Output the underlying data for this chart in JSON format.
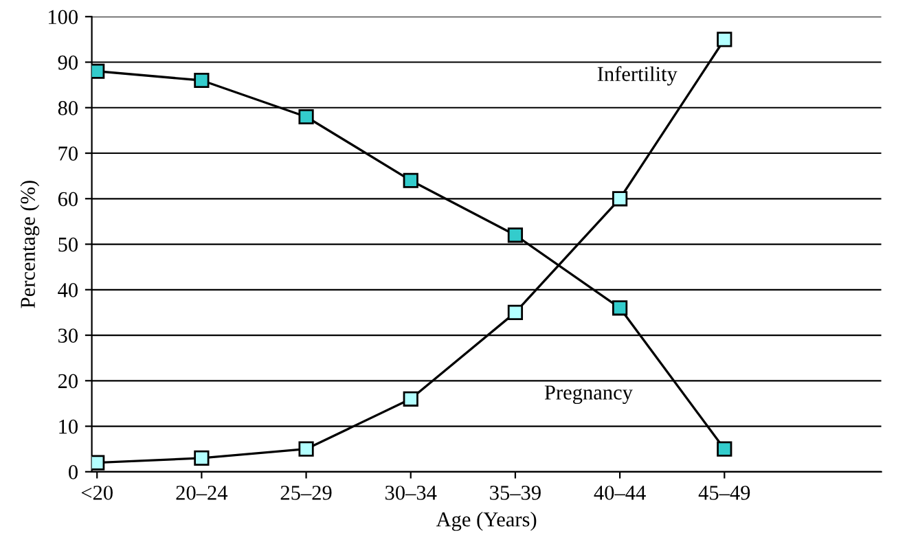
{
  "chart_data": {
    "type": "line",
    "xlabel": "Age (Years)",
    "ylabel": "Percentage (%)",
    "categories": [
      "<20",
      "20–24",
      "25–29",
      "30–34",
      "35–39",
      "40–44",
      "45–49"
    ],
    "series": [
      {
        "name": "Pregnancy",
        "color": "#33cccc",
        "values": [
          88,
          86,
          78,
          64,
          52,
          36,
          5
        ]
      },
      {
        "name": "Infertility",
        "color": "#b3ffff",
        "values": [
          2,
          3,
          5,
          16,
          35,
          60,
          95
        ]
      }
    ],
    "ylim": [
      0,
      100
    ],
    "yticks": [
      0,
      10,
      20,
      30,
      40,
      50,
      60,
      70,
      80,
      90,
      100
    ],
    "grid": "y",
    "marker": "square",
    "line_style": "solid",
    "legend": false
  }
}
